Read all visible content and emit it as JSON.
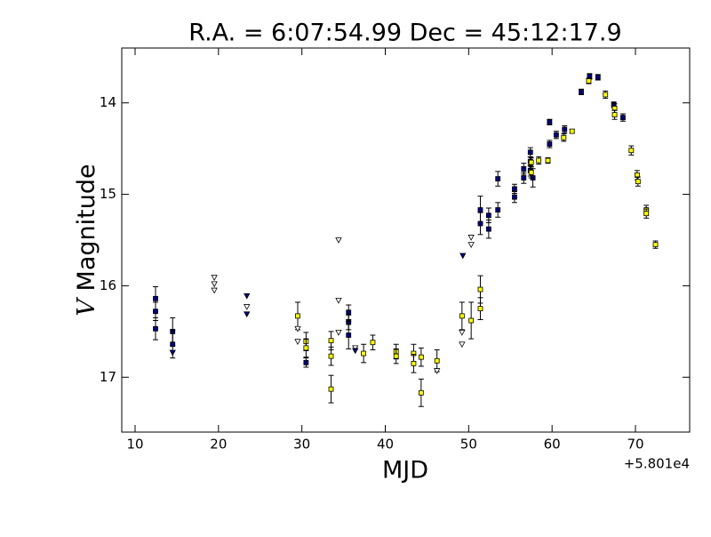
{
  "chart_data": {
    "type": "scatter",
    "title": "R.A. = 6:07:54.99   Dec = 45:12:17.9",
    "x_label": "MJD",
    "x_offset_label": "+5.801e4",
    "y_label_var": "V",
    "y_label": "Magnitude",
    "xlim": [
      8.4,
      76.5
    ],
    "xticks": [
      10,
      20,
      30,
      40,
      50,
      60,
      70
    ],
    "ylim": [
      13.4,
      17.6
    ],
    "y_inverted": true,
    "yticks": [
      14,
      15,
      16,
      17
    ],
    "series": [
      {
        "color": "#000080",
        "marker": "square",
        "x": [
          12.45,
          12.45,
          12.45,
          14.5,
          14.5,
          30.5,
          35.6,
          35.6,
          35.6,
          51.4,
          51.4,
          52.4,
          52.4,
          53.5,
          53.5,
          55.5,
          55.5,
          56.6,
          56.6,
          57.4,
          57.4,
          57.4,
          57.7,
          59.7,
          59.7,
          60.5,
          61.5,
          63.5,
          64.5,
          65.5,
          67.4,
          68.5
        ],
        "values": [
          16.14,
          16.28,
          16.47,
          16.5,
          16.64,
          16.84,
          16.29,
          16.4,
          16.54,
          15.17,
          15.32,
          15.23,
          15.38,
          14.83,
          15.17,
          14.94,
          15.03,
          14.72,
          14.82,
          14.54,
          14.64,
          14.74,
          14.82,
          14.21,
          14.45,
          14.35,
          14.29,
          13.88,
          13.71,
          13.72,
          14.02,
          14.16
        ],
        "errors": [
          0.13,
          0.1,
          0.12,
          0.15,
          0.15,
          0.05,
          0.08,
          0.08,
          0.15,
          0.15,
          0.12,
          0.08,
          0.1,
          0.08,
          0.08,
          0.05,
          0.06,
          0.06,
          0.06,
          0.05,
          0.05,
          0.06,
          0.1,
          0.03,
          0.04,
          0.04,
          0.04,
          0.03,
          0.03,
          0.03,
          0.03,
          0.04
        ]
      },
      {
        "color": "#ffff00",
        "marker": "square",
        "x": [
          29.5,
          30.5,
          30.5,
          33.5,
          33.5,
          33.5,
          37.4,
          38.5,
          41.3,
          41.3,
          43.4,
          43.4,
          44.3,
          44.3,
          46.2,
          49.2,
          50.3,
          51.4,
          51.4,
          57.5,
          57.5,
          58.4,
          59.5,
          61.4,
          62.4,
          64.4,
          66.4,
          67.5,
          67.5,
          69.5,
          70.2,
          70.3,
          71.3,
          71.3,
          72.4
        ],
        "values": [
          16.33,
          16.61,
          16.68,
          16.6,
          16.77,
          17.13,
          16.74,
          16.62,
          16.72,
          16.77,
          16.74,
          16.85,
          16.78,
          17.17,
          16.82,
          16.33,
          16.38,
          16.04,
          16.25,
          14.65,
          14.76,
          14.63,
          14.63,
          14.38,
          14.31,
          13.76,
          13.91,
          14.06,
          14.13,
          14.52,
          14.79,
          14.86,
          15.17,
          15.21,
          15.55
        ],
        "errors": [
          0.15,
          0.1,
          0.1,
          0.1,
          0.1,
          0.15,
          0.1,
          0.08,
          0.08,
          0.08,
          0.1,
          0.1,
          0.1,
          0.15,
          0.12,
          0.15,
          0.2,
          0.15,
          0.12,
          0.05,
          0.06,
          0.04,
          0.03,
          0.04,
          0.02,
          0.03,
          0.04,
          0.05,
          0.05,
          0.05,
          0.05,
          0.05,
          0.05,
          0.05,
          0.04
        ]
      },
      {
        "color": "#ffffff",
        "marker": "triangle_down",
        "x": [
          19.5,
          19.5,
          19.5,
          23.4,
          29.5,
          29.5,
          34.4,
          34.4,
          34.4,
          36.4,
          46.2,
          49.2,
          49.2,
          50.3,
          50.3
        ],
        "values": [
          15.91,
          15.98,
          16.05,
          16.23,
          16.61,
          16.47,
          15.5,
          16.16,
          16.51,
          16.68,
          16.93,
          16.51,
          16.64,
          15.47,
          15.55
        ]
      },
      {
        "color": "#000080",
        "marker": "triangle_down",
        "x": [
          14.5,
          23.4,
          23.4,
          36.4,
          49.3
        ],
        "values": [
          16.73,
          16.11,
          16.31,
          16.71,
          15.67
        ]
      }
    ]
  }
}
